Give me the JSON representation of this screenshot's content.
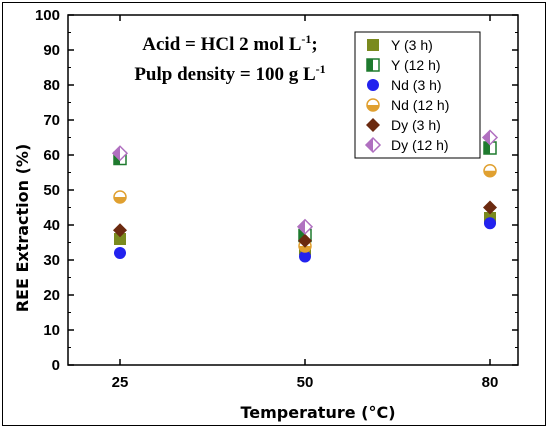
{
  "chart_data": {
    "type": "scatter",
    "x_categories": [
      "25",
      "50",
      "80"
    ],
    "xlabel": "Temperature (°C)",
    "ylabel": "REE Extraction (%)",
    "ylim": [
      0,
      100
    ],
    "y_ticks": [
      "0",
      "10",
      "20",
      "30",
      "40",
      "50",
      "60",
      "70",
      "80",
      "90",
      "100"
    ],
    "annotations": [
      {
        "text": "Acid = HCl 2 mol L",
        "sup": "-1",
        "tail": ";"
      },
      {
        "text": "Pulp density = 100 g L",
        "sup": "-1",
        "tail": ""
      }
    ],
    "legend_position": "top-right",
    "series": [
      {
        "name": "Y (3 h)",
        "marker": "square",
        "color": "#7a8a1e",
        "values": [
          36,
          33,
          42
        ]
      },
      {
        "name": "Y (12 h)",
        "marker": "half-square",
        "color": "#1e7a2e",
        "values": [
          59,
          37,
          62
        ]
      },
      {
        "name": "Nd (3 h)",
        "marker": "circle",
        "color": "#2222ee",
        "values": [
          32,
          31,
          40.5
        ]
      },
      {
        "name": "Nd (12 h)",
        "marker": "half-circle",
        "color": "#e0a030",
        "values": [
          48,
          34,
          55.5
        ]
      },
      {
        "name": "Dy (3 h)",
        "marker": "diamond",
        "color": "#6b2a10",
        "values": [
          38.5,
          35.5,
          45
        ]
      },
      {
        "name": "Dy (12 h)",
        "marker": "half-diamond",
        "color": "#b070c0",
        "values": [
          60.5,
          39.5,
          65
        ]
      }
    ]
  }
}
